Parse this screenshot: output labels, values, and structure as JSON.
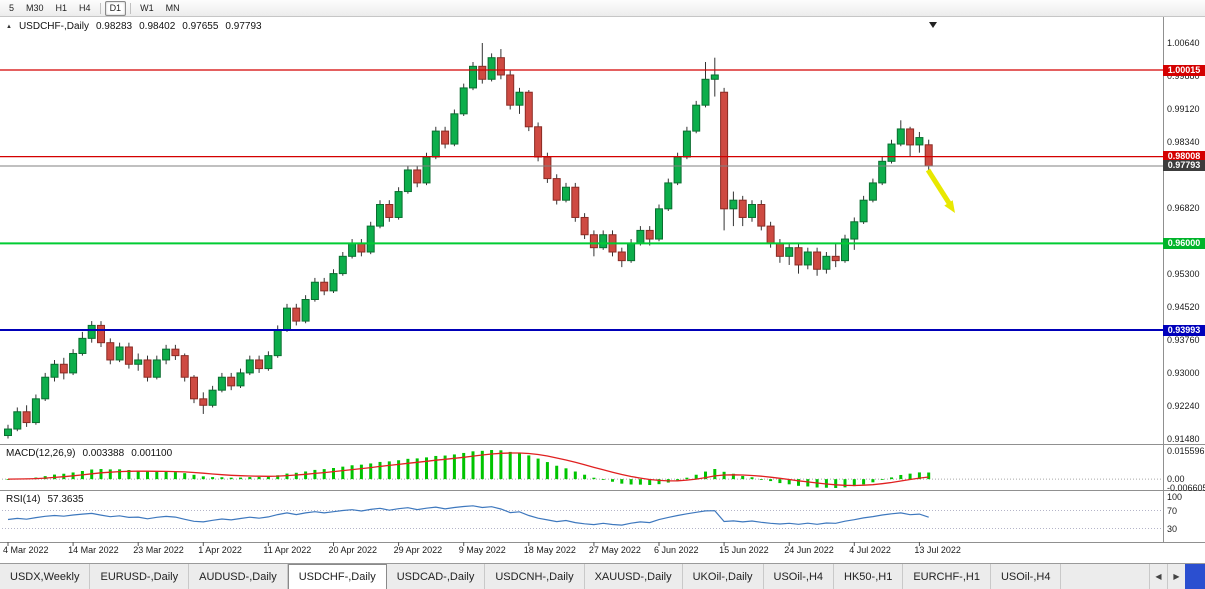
{
  "toolbar": {
    "timeframes": [
      "5",
      "M30",
      "H1",
      "H4",
      "D1",
      "W1",
      "MN"
    ],
    "active": "D1",
    "separators_after": [
      "H4",
      "D1"
    ]
  },
  "title": {
    "symbol": "USDCHF-,Daily",
    "open": "0.98283",
    "high": "0.98402",
    "low": "0.97655",
    "close": "0.97793"
  },
  "y_axis": {
    "labels": [
      "1.00640",
      "0.99880",
      "0.99120",
      "0.98340",
      "0.96820",
      "0.95300",
      "0.94520",
      "0.93760",
      "0.93000",
      "0.92240",
      "0.91480"
    ]
  },
  "levels": [
    {
      "label": "1.00015",
      "price": 1.00015,
      "color": "#d40000",
      "badge_bg": "#d40000",
      "line_width": 1.3
    },
    {
      "label": "0.98008",
      "price": 0.98008,
      "color": "#d40000",
      "badge_bg": "#d40000",
      "line_width": 1.3
    },
    {
      "label": "0.97793",
      "price": 0.97793,
      "color": "#808080",
      "badge_bg": "#3c3c3c",
      "line_width": 1
    },
    {
      "label": "0.96000",
      "price": 0.96,
      "color": "#00cc33",
      "badge_bg": "#00b42a",
      "line_width": 2
    },
    {
      "label": "0.93993",
      "price": 0.93993,
      "color": "#0000b8",
      "badge_bg": "#0000bb",
      "line_width": 2
    }
  ],
  "x_axis": {
    "labels": [
      "4 Mar 2022",
      "14 Mar 2022",
      "23 Mar 2022",
      "1 Apr 2022",
      "11 Apr 2022",
      "20 Apr 2022",
      "29 Apr 2022",
      "9 May 2022",
      "18 May 2022",
      "27 May 2022",
      "6 Jun 2022",
      "15 Jun 2022",
      "24 Jun 2022",
      "4 Jul 2022",
      "13 Jul 2022"
    ],
    "tick_step": 7
  },
  "macd": {
    "name": "MACD(12,26,9)",
    "value_main": "0.003388",
    "value_signal": "0.001100",
    "axis": [
      "0.015596",
      "0.00",
      "-0.006605"
    ]
  },
  "rsi": {
    "name": "RSI(14)",
    "value": "57.3635",
    "axis": [
      "100",
      "70",
      "30"
    ],
    "levels": [
      70,
      30
    ]
  },
  "annotation": {
    "type": "arrow-down-right",
    "color": "#e8e800"
  },
  "tabbar": {
    "tabs": [
      "USDX,Weekly",
      "EURUSD-,Daily",
      "AUDUSD-,Daily",
      "USDCHF-,Daily",
      "USDCAD-,Daily",
      "USDCNH-,Daily",
      "XAUUSD-,Daily",
      "UKOil-,Daily",
      "USOil-,H4",
      "HK50-,H1",
      "EURCHF-,H1",
      "USOil-,H4"
    ],
    "active_index": 3,
    "scroll_left": "◀",
    "scroll_right": "▶"
  },
  "colors": {
    "bull": "#0cae4b",
    "bull_border": "#0a6e30",
    "bear": "#ce4a42",
    "bear_border": "#8a2b24",
    "wick": "#333333",
    "macd_hist": "#00c400",
    "macd_signal": "#e02020",
    "rsi_line": "#3e78be",
    "rsi_level": "#b4b4c8",
    "separator": "#909090",
    "axis_text": "#1a1a1a",
    "end_marker": "#222222",
    "arrow": "#e8e800"
  },
  "chart_data": {
    "type": "candlestick",
    "symbol": "USDCHF",
    "timeframe": "Daily",
    "last_ohlc": {
      "open": 0.98283,
      "high": 0.98402,
      "low": 0.97655,
      "close": 0.97793
    },
    "y_range": [
      0.9148,
      1.009
    ],
    "candles": [
      [
        0.9155,
        0.918,
        0.9148,
        0.917
      ],
      [
        0.917,
        0.922,
        0.9165,
        0.921
      ],
      [
        0.921,
        0.9225,
        0.9175,
        0.9185
      ],
      [
        0.9185,
        0.925,
        0.918,
        0.924
      ],
      [
        0.924,
        0.93,
        0.9235,
        0.929
      ],
      [
        0.929,
        0.933,
        0.928,
        0.932
      ],
      [
        0.932,
        0.9335,
        0.9285,
        0.93
      ],
      [
        0.93,
        0.9355,
        0.9295,
        0.9345
      ],
      [
        0.9345,
        0.9395,
        0.934,
        0.938
      ],
      [
        0.938,
        0.942,
        0.937,
        0.941
      ],
      [
        0.941,
        0.942,
        0.936,
        0.937
      ],
      [
        0.937,
        0.938,
        0.932,
        0.933
      ],
      [
        0.933,
        0.937,
        0.9325,
        0.936
      ],
      [
        0.936,
        0.937,
        0.931,
        0.932
      ],
      [
        0.932,
        0.9345,
        0.9305,
        0.933
      ],
      [
        0.933,
        0.934,
        0.928,
        0.929
      ],
      [
        0.929,
        0.934,
        0.9285,
        0.933
      ],
      [
        0.933,
        0.9365,
        0.932,
        0.9355
      ],
      [
        0.9355,
        0.9365,
        0.933,
        0.934
      ],
      [
        0.934,
        0.9345,
        0.928,
        0.929
      ],
      [
        0.929,
        0.9295,
        0.923,
        0.924
      ],
      [
        0.924,
        0.9255,
        0.9205,
        0.9225
      ],
      [
        0.9225,
        0.927,
        0.922,
        0.926
      ],
      [
        0.926,
        0.93,
        0.9255,
        0.929
      ],
      [
        0.929,
        0.93,
        0.926,
        0.927
      ],
      [
        0.927,
        0.931,
        0.9265,
        0.93
      ],
      [
        0.93,
        0.934,
        0.9295,
        0.933
      ],
      [
        0.933,
        0.934,
        0.93,
        0.931
      ],
      [
        0.931,
        0.935,
        0.9305,
        0.934
      ],
      [
        0.934,
        0.941,
        0.9335,
        0.94
      ],
      [
        0.94,
        0.946,
        0.9395,
        0.945
      ],
      [
        0.945,
        0.946,
        0.941,
        0.942
      ],
      [
        0.942,
        0.948,
        0.9415,
        0.947
      ],
      [
        0.947,
        0.952,
        0.9465,
        0.951
      ],
      [
        0.951,
        0.952,
        0.948,
        0.949
      ],
      [
        0.949,
        0.954,
        0.9485,
        0.953
      ],
      [
        0.953,
        0.958,
        0.9525,
        0.957
      ],
      [
        0.957,
        0.961,
        0.9565,
        0.96
      ],
      [
        0.96,
        0.961,
        0.957,
        0.958
      ],
      [
        0.958,
        0.965,
        0.9575,
        0.964
      ],
      [
        0.964,
        0.97,
        0.9635,
        0.969
      ],
      [
        0.969,
        0.97,
        0.965,
        0.966
      ],
      [
        0.966,
        0.973,
        0.9655,
        0.972
      ],
      [
        0.972,
        0.978,
        0.9715,
        0.977
      ],
      [
        0.977,
        0.978,
        0.973,
        0.974
      ],
      [
        0.974,
        0.981,
        0.9735,
        0.98
      ],
      [
        0.98,
        0.987,
        0.9795,
        0.986
      ],
      [
        0.986,
        0.987,
        0.982,
        0.983
      ],
      [
        0.983,
        0.991,
        0.9825,
        0.99
      ],
      [
        0.99,
        0.997,
        0.9895,
        0.996
      ],
      [
        0.996,
        1.002,
        0.9955,
        1.001
      ],
      [
        1.001,
        1.0064,
        0.997,
        0.998
      ],
      [
        0.998,
        1.004,
        0.9975,
        1.003
      ],
      [
        1.003,
        1.005,
        0.998,
        0.999
      ],
      [
        0.999,
        1.0,
        0.991,
        0.992
      ],
      [
        0.992,
        0.996,
        0.99,
        0.995
      ],
      [
        0.995,
        0.9955,
        0.986,
        0.987
      ],
      [
        0.987,
        0.988,
        0.979,
        0.98
      ],
      [
        0.98,
        0.981,
        0.974,
        0.975
      ],
      [
        0.975,
        0.976,
        0.969,
        0.97
      ],
      [
        0.97,
        0.974,
        0.9695,
        0.973
      ],
      [
        0.973,
        0.974,
        0.965,
        0.966
      ],
      [
        0.966,
        0.967,
        0.961,
        0.962
      ],
      [
        0.962,
        0.963,
        0.957,
        0.959
      ],
      [
        0.959,
        0.963,
        0.9585,
        0.962
      ],
      [
        0.962,
        0.963,
        0.957,
        0.958
      ],
      [
        0.958,
        0.959,
        0.9545,
        0.956
      ],
      [
        0.956,
        0.961,
        0.9555,
        0.96
      ],
      [
        0.96,
        0.964,
        0.9595,
        0.963
      ],
      [
        0.963,
        0.964,
        0.9595,
        0.961
      ],
      [
        0.961,
        0.969,
        0.9605,
        0.968
      ],
      [
        0.968,
        0.975,
        0.9675,
        0.974
      ],
      [
        0.974,
        0.981,
        0.9735,
        0.98
      ],
      [
        0.98,
        0.987,
        0.9795,
        0.986
      ],
      [
        0.986,
        0.993,
        0.9855,
        0.992
      ],
      [
        0.992,
        1.002,
        0.9915,
        0.998
      ],
      [
        0.998,
        1.003,
        0.994,
        0.999
      ],
      [
        0.995,
        0.996,
        0.963,
        0.968
      ],
      [
        0.968,
        0.972,
        0.964,
        0.97
      ],
      [
        0.97,
        0.971,
        0.964,
        0.966
      ],
      [
        0.966,
        0.97,
        0.965,
        0.969
      ],
      [
        0.969,
        0.97,
        0.963,
        0.964
      ],
      [
        0.964,
        0.965,
        0.959,
        0.96
      ],
      [
        0.96,
        0.961,
        0.9555,
        0.957
      ],
      [
        0.957,
        0.96,
        0.955,
        0.959
      ],
      [
        0.959,
        0.96,
        0.953,
        0.955
      ],
      [
        0.955,
        0.959,
        0.954,
        0.958
      ],
      [
        0.958,
        0.959,
        0.9525,
        0.954
      ],
      [
        0.954,
        0.958,
        0.953,
        0.957
      ],
      [
        0.957,
        0.96,
        0.9545,
        0.956
      ],
      [
        0.956,
        0.962,
        0.9555,
        0.961
      ],
      [
        0.961,
        0.966,
        0.9585,
        0.965
      ],
      [
        0.965,
        0.971,
        0.9645,
        0.97
      ],
      [
        0.97,
        0.975,
        0.9695,
        0.974
      ],
      [
        0.974,
        0.98,
        0.9735,
        0.979
      ],
      [
        0.979,
        0.984,
        0.9785,
        0.983
      ],
      [
        0.983,
        0.9885,
        0.9825,
        0.9865
      ],
      [
        0.9865,
        0.987,
        0.98,
        0.9828
      ],
      [
        0.9828,
        0.9858,
        0.981,
        0.9845
      ],
      [
        0.98283,
        0.98402,
        0.97655,
        0.97793
      ]
    ]
  }
}
